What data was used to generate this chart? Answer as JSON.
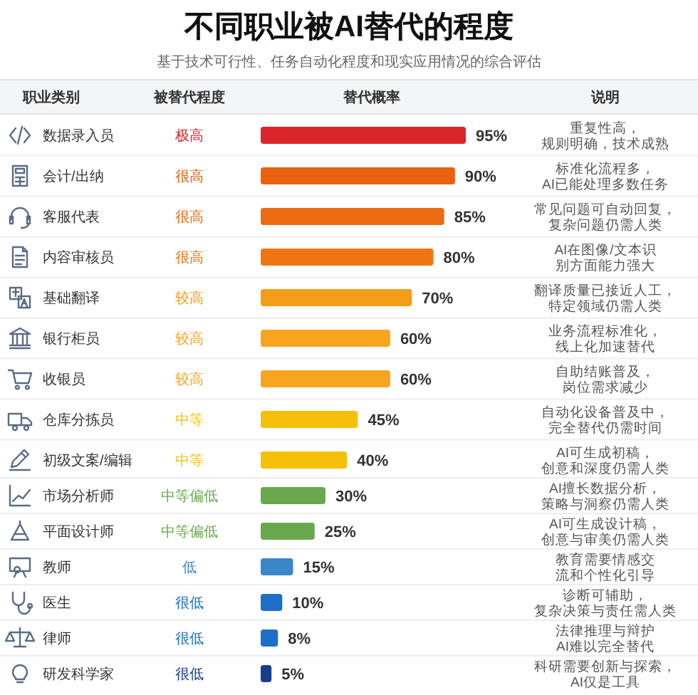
{
  "chart_data": {
    "type": "bar",
    "orientation": "horizontal",
    "title": "不同职业被AI替代的程度",
    "subtitle": "基于技术可行性、任务自动化程度和现实应用情况的综合评估",
    "ylabel": "职业类别",
    "xlabel": "替代概率",
    "categories": [
      "数据录入员",
      "会计/出纳",
      "客服代表",
      "内容审核员",
      "基础翻译",
      "银行柜员",
      "收银员",
      "仓库分拣员",
      "初级文案/编辑",
      "市场分析师",
      "平面设计师",
      "教师",
      "医生",
      "律师",
      "研发科学家"
    ],
    "values": [
      95,
      90,
      85,
      80,
      70,
      60,
      60,
      45,
      40,
      30,
      25,
      15,
      10,
      8,
      5
    ],
    "colors": [
      "#d9252b",
      "#e9620f",
      "#ec6b12",
      "#ef7514",
      "#f59c18",
      "#f7a51f",
      "#f7a51f",
      "#f5c00a",
      "#f5c00a",
      "#6aa84f",
      "#6aa84f",
      "#3a87c8",
      "#1f6fc8",
      "#1f6fc8",
      "#173f8a"
    ],
    "value_labels": [
      "95%",
      "90%",
      "85%",
      "80%",
      "70%",
      "60%",
      "60%",
      "45%",
      "40%",
      "30%",
      "25%",
      "15%",
      "10%",
      "8%",
      "5%"
    ],
    "annotations": [
      "被替代程度",
      "说明",
      "极高",
      "重复性高，规则明确，技术成熟",
      "很高",
      "标准化流程多，AI已能处理多数任务",
      "很高",
      "常见问题可自动回复，复杂问题仍需人类",
      "很高",
      "AI在图像/文本识别方面能力强大",
      "较高",
      "翻译质量已接近人工，特定领域仍需人类",
      "较高",
      "业务流程标准化，线上化加速替代",
      "较高",
      "自助结账普及，岗位需求减少",
      "中等",
      "自动化设备普及中，完全替代仍需时间",
      "中等",
      "AI可生成初稿，创意和深度仍需人类",
      "中等偏低",
      "AI擅长数据分析，策略与洞察仍需人类",
      "中等偏低",
      "AI可生成设计稿，创意与审美仍需人类",
      "低",
      "教育需要情感交流和个性化引导",
      "很低",
      "诊断可辅助，复杂决策与责任需人类",
      "很低",
      "法律推理与辩护AI难以完全替代",
      "很低",
      "科研需要创新与探索，AI仅是工具"
    ]
  }
}
